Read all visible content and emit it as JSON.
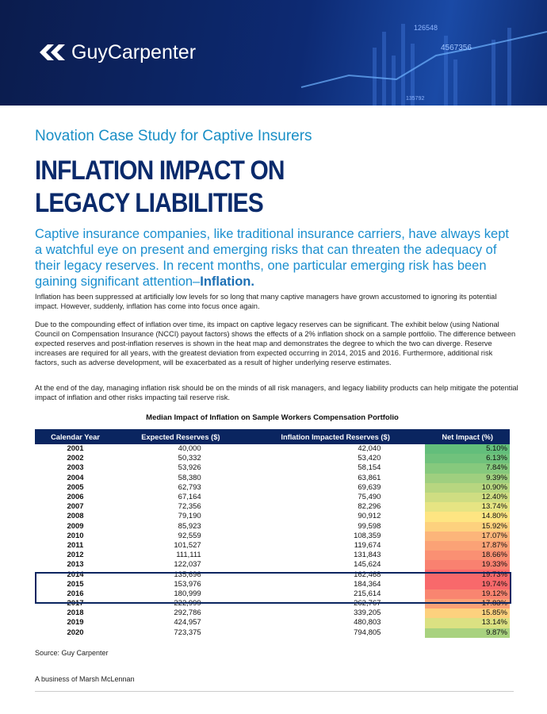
{
  "header": {
    "brand": "GuyCarpenter",
    "decor": [
      "126548",
      "4567356",
      "135792"
    ]
  },
  "subtitle": "Novation Case Study for Captive Insurers",
  "title": [
    "INFLATION IMPACT ON",
    "LEGACY LIABILITIES"
  ],
  "lead": "Captive insurance companies, like traditional insurance carriers, have always kept a watchful eye on present and emerging risks that can threaten the adequacy of their legacy reserves. In recent months, one particular emerging risk has been gaining significant attention–",
  "lead_bold": "Inflation.",
  "paragraphs": [
    "Inflation has been suppressed at artificially low levels for so long that many captive managers have grown accustomed to ignoring its potential impact. However, suddenly, inflation has come into focus once again.",
    "Due to the compounding effect of inflation over time, its impact on captive legacy reserves can be significant. The exhibit below (using National Council on Compensation Insurance (NCCI) payout factors) shows the effects of a 2% inflation shock on a sample portfolio. The difference between expected reserves and post-inflation reserves is shown in the heat map and demonstrates the degree to which the two can diverge. Reserve increases are required for all years, with the greatest deviation from expected occurring in 2014, 2015 and 2016. Furthermore, additional risk factors, such as adverse development, will be exacerbated as a result of higher underlying reserve estimates.",
    "At the end of the day, managing inflation risk should be on the minds of all risk managers, and legacy liability products can help mitigate the potential impact of inflation and other risks impacting tail reserve risk."
  ],
  "table": {
    "title": "Median Impact of Inflation on Sample Workers Compensation Portfolio",
    "columns": [
      "Calendar Year",
      "Expected Reserves ($)",
      "Inflation Impacted Reserves ($)",
      "Net  Impact (%)"
    ],
    "rows": [
      [
        "2001",
        "40,000",
        "42,040",
        "5.10%"
      ],
      [
        "2002",
        "50,332",
        "53,420",
        "6.13%"
      ],
      [
        "2003",
        "53,926",
        "58,154",
        "7.84%"
      ],
      [
        "2004",
        "58,380",
        "63,861",
        "9.39%"
      ],
      [
        "2005",
        "62,793",
        "69,639",
        "10.90%"
      ],
      [
        "2006",
        "67,164",
        "75,490",
        "12.40%"
      ],
      [
        "2007",
        "72,356",
        "82,296",
        "13.74%"
      ],
      [
        "2008",
        "79,190",
        "90,912",
        "14.80%"
      ],
      [
        "2009",
        "85,923",
        "99,598",
        "15.92%"
      ],
      [
        "2010",
        "92,559",
        "108,359",
        "17.07%"
      ],
      [
        "2011",
        "101,527",
        "119,674",
        "17.87%"
      ],
      [
        "2012",
        "111,111",
        "131,843",
        "18.66%"
      ],
      [
        "2013",
        "122,037",
        "145,624",
        "19.33%"
      ],
      [
        "2014",
        "135,696",
        "162,468",
        "19.73%"
      ],
      [
        "2015",
        "153,976",
        "184,364",
        "19.74%"
      ],
      [
        "2016",
        "180,999",
        "215,614",
        "19.12%"
      ],
      [
        "2017",
        "222,999",
        "262,767",
        "17.83%"
      ],
      [
        "2018",
        "292,786",
        "339,205",
        "15.85%"
      ],
      [
        "2019",
        "424,957",
        "480,803",
        "13.14%"
      ],
      [
        "2020",
        "723,375",
        "794,805",
        "9.87%"
      ]
    ],
    "impact_colors": [
      "#63be7b",
      "#70c27c",
      "#86c97d",
      "#9fcf7f",
      "#b7d680",
      "#cfdd82",
      "#e6e483",
      "#fee582",
      "#fdd17e",
      "#fcb57a",
      "#fba276",
      "#fa9073",
      "#f98170",
      "#f8696b",
      "#f8696b",
      "#f98570",
      "#fba276",
      "#fdd17e",
      "#dbe182",
      "#a8d27f"
    ]
  },
  "source": "Source: Guy Carpenter",
  "footer": "A business of Marsh McLennan"
}
